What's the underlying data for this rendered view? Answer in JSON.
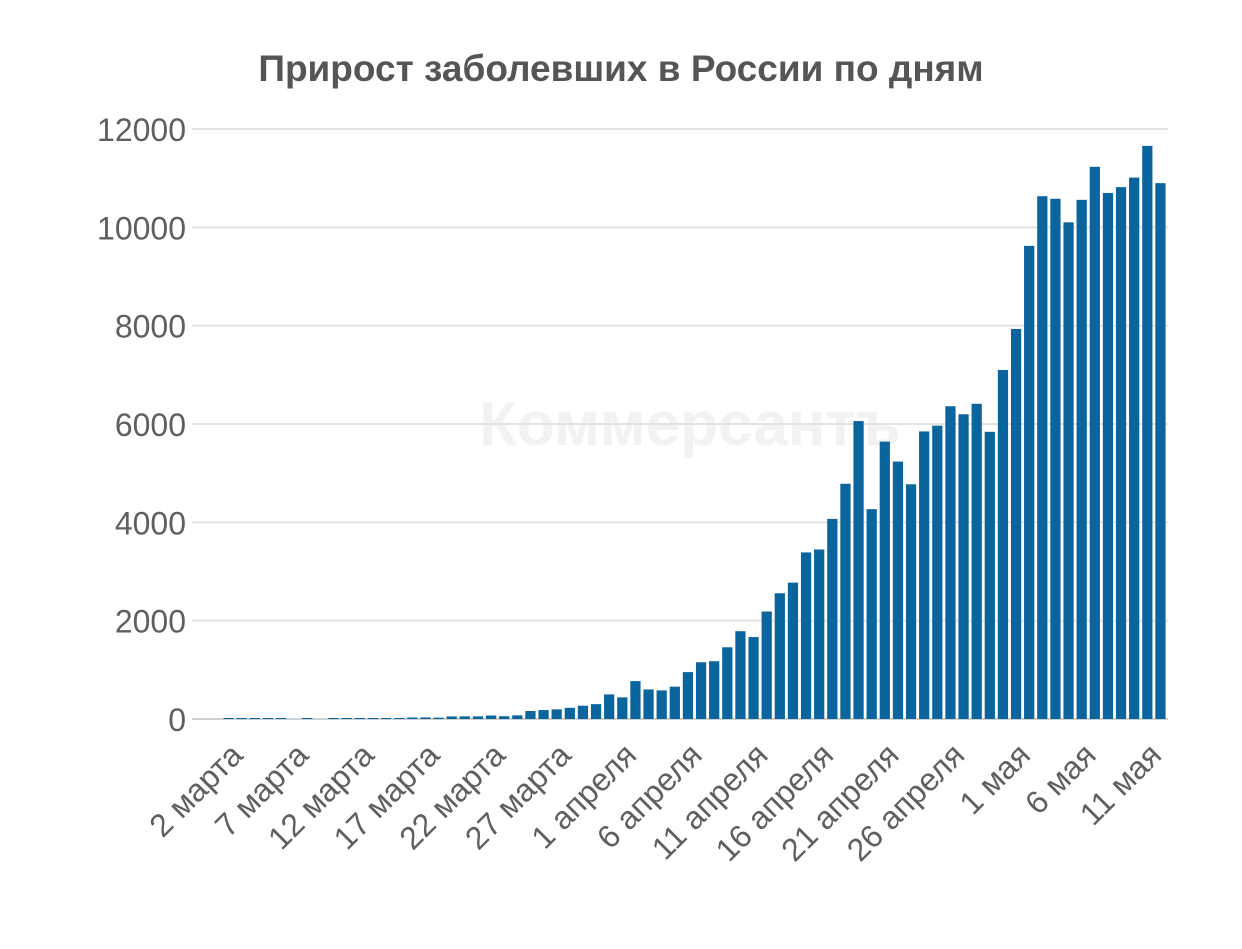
{
  "chart_data": {
    "type": "bar",
    "title": "Прирост заболевших в России по дням",
    "xlabel": "",
    "ylabel": "",
    "ylim": [
      0,
      12000
    ],
    "yticks": [
      "0",
      "2000",
      "4000",
      "6000",
      "8000",
      "10000",
      "12000"
    ],
    "grid": true,
    "legend": "none",
    "bar_color": "#0a649e",
    "watermark": "Коммерсантъ",
    "tick_labels": [
      "2 марта",
      "7 марта",
      "12 марта",
      "17 марта",
      "22 марта",
      "27 марта",
      "1 апреля",
      "6 апреля",
      "11 апреля",
      "16 апреля",
      "21 апреля",
      "26 апреля",
      "1 мая",
      "6 мая",
      "11 мая"
    ],
    "categories": [
      "2 марта",
      "3 марта",
      "4 марта",
      "5 марта",
      "6 марта",
      "7 марта",
      "8 марта",
      "9 марта",
      "10 марта",
      "11 марта",
      "12 марта",
      "13 марта",
      "14 марта",
      "15 марта",
      "16 марта",
      "17 марта",
      "18 марта",
      "19 марта",
      "20 марта",
      "21 марта",
      "22 марта",
      "23 марта",
      "24 марта",
      "25 марта",
      "26 марта",
      "27 марта",
      "28 марта",
      "29 марта",
      "30 марта",
      "31 марта",
      "1 апреля",
      "2 апреля",
      "3 апреля",
      "4 апреля",
      "5 апреля",
      "6 апреля",
      "7 апреля",
      "8 апреля",
      "9 апреля",
      "10 апреля",
      "11 апреля",
      "12 апреля",
      "13 апреля",
      "14 апреля",
      "15 апреля",
      "16 апреля",
      "17 апреля",
      "18 апреля",
      "19 апреля",
      "20 апреля",
      "21 апреля",
      "22 апреля",
      "23 апреля",
      "24 апреля",
      "25 апреля",
      "26 апреля",
      "27 апреля",
      "28 апреля",
      "29 апреля",
      "30 апреля",
      "1 мая",
      "2 мая",
      "3 мая",
      "4 мая",
      "5 мая",
      "6 мая",
      "7 мая",
      "8 мая",
      "9 мая",
      "10 мая",
      "11 мая",
      "12 мая"
    ],
    "values": [
      1,
      1,
      1,
      1,
      1,
      0,
      4,
      0,
      3,
      3,
      6,
      6,
      11,
      14,
      30,
      32,
      27,
      52,
      54,
      53,
      71,
      57,
      74,
      163,
      182,
      196,
      228,
      270,
      302,
      500,
      440,
      771,
      601,
      582,
      658,
      954,
      1154,
      1175,
      1459,
      1786,
      1667,
      2186,
      2558,
      2774,
      3388,
      3448,
      4070,
      4785,
      6060,
      4268,
      5642,
      5236,
      4774,
      5849,
      5966,
      6361,
      6198,
      6411,
      5841,
      7099,
      7933,
      9623,
      10633,
      10581,
      10102,
      10559,
      11231,
      10699,
      10817,
      11012,
      11656,
      10899
    ]
  }
}
